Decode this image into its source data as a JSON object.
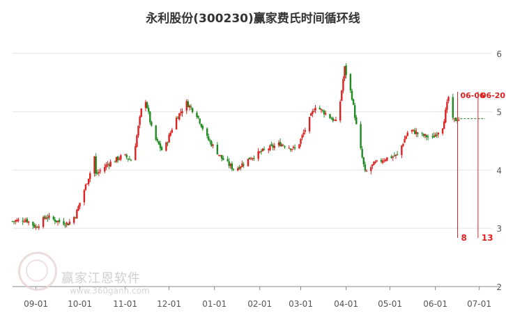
{
  "title": "永利股份(300230)赢家费氏时间循环线",
  "watermark": {
    "name": "赢家江恩软件",
    "url": "www.360gann.com"
  },
  "colors": {
    "up": "#e02020",
    "down": "#1f8a1f",
    "marker": "#e02020",
    "price_line": "#2a7a2a",
    "grid": "#e6e6e6"
  },
  "chart_data": {
    "type": "candlestick",
    "title": "永利股份(300230)赢家费氏时间循环线",
    "x_tick_labels": [
      "09-01",
      "10-01",
      "11-01",
      "12-01",
      "01-01",
      "02-01",
      "03-01",
      "04-01",
      "05-01",
      "06-01",
      "07-01"
    ],
    "y_tick_labels": [
      "2",
      "3",
      "4",
      "5",
      "6"
    ],
    "ylim": [
      2,
      6.2
    ],
    "grid": "horizontal",
    "current_price": 4.88,
    "fib_time_lines": [
      {
        "date_label": "06-06",
        "count_label": "8"
      },
      {
        "date_label": "06-20",
        "count_label": "13"
      }
    ],
    "price_path": [
      [
        "08-16",
        3.12
      ],
      [
        "08-25",
        3.15
      ],
      [
        "09-01",
        3.02
      ],
      [
        "09-08",
        3.2
      ],
      [
        "09-16",
        3.12
      ],
      [
        "09-23",
        3.08
      ],
      [
        "09-28",
        3.22
      ],
      [
        "10-08",
        3.95
      ],
      [
        "10-09",
        4.85
      ],
      [
        "10-12",
        3.92
      ],
      [
        "10-20",
        4.1
      ],
      [
        "10-31",
        4.25
      ],
      [
        "11-06",
        4.15
      ],
      [
        "11-14",
        5.32
      ],
      [
        "11-20",
        4.6
      ],
      [
        "11-27",
        4.3
      ],
      [
        "12-05",
        4.85
      ],
      [
        "12-13",
        5.15
      ],
      [
        "12-20",
        4.95
      ],
      [
        "12-27",
        4.55
      ],
      [
        "01-06",
        4.2
      ],
      [
        "01-15",
        4.0
      ],
      [
        "01-25",
        4.2
      ],
      [
        "02-05",
        4.35
      ],
      [
        "02-15",
        4.45
      ],
      [
        "02-26",
        4.35
      ],
      [
        "03-05",
        4.75
      ],
      [
        "03-11",
        5.1
      ],
      [
        "03-19",
        4.95
      ],
      [
        "03-26",
        4.8
      ],
      [
        "03-31",
        5.75
      ],
      [
        "04-05",
        5.25
      ],
      [
        "04-09",
        4.6
      ],
      [
        "04-14",
        3.95
      ],
      [
        "04-20",
        4.1
      ],
      [
        "04-28",
        4.2
      ],
      [
        "05-06",
        4.25
      ],
      [
        "05-14",
        4.7
      ],
      [
        "05-22",
        4.6
      ],
      [
        "05-30",
        4.55
      ],
      [
        "06-06",
        4.75
      ],
      [
        "06-10",
        5.25
      ],
      [
        "06-13",
        4.85
      ],
      [
        "06-18",
        4.88
      ]
    ]
  }
}
